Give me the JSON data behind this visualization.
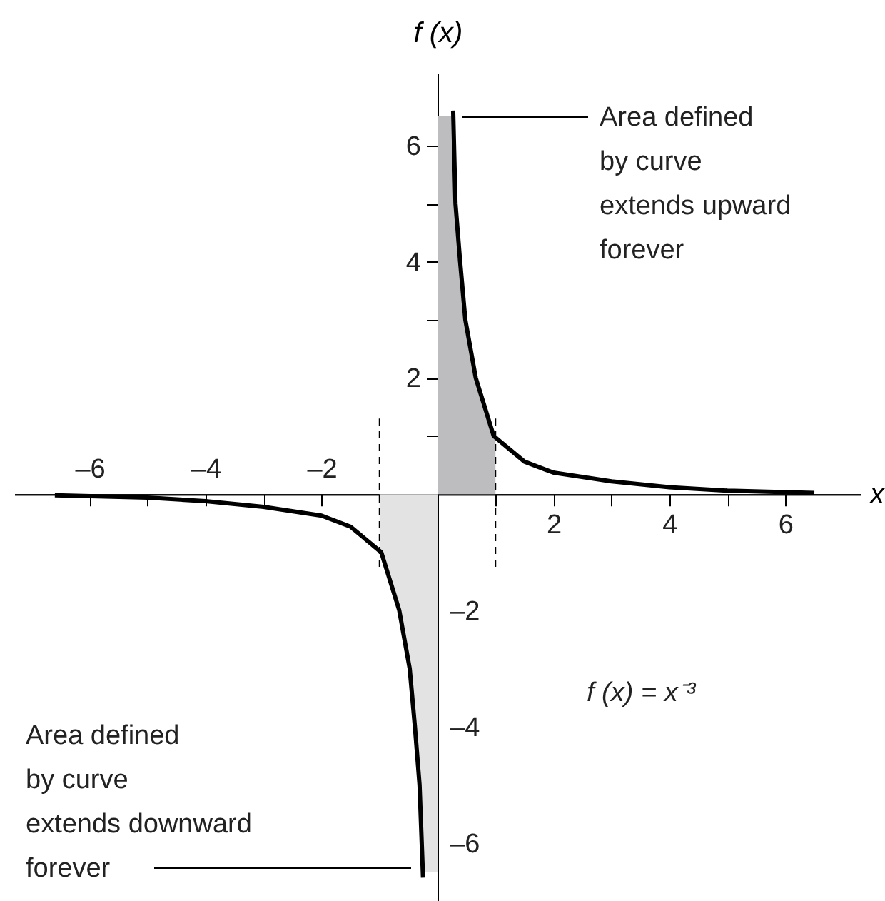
{
  "chart_data": {
    "type": "line",
    "xlabel": "x",
    "ylabel": "f (x)",
    "xlim": [
      -7.3,
      7.3
    ],
    "ylim": [
      -7.0,
      7.25
    ],
    "xticks": [
      {
        "value": -6,
        "label": "–6"
      },
      {
        "value": -5,
        "label": null
      },
      {
        "value": -4,
        "label": "–4"
      },
      {
        "value": -3,
        "label": null
      },
      {
        "value": -2,
        "label": "–2"
      },
      {
        "value": -1,
        "label": null
      }
    ],
    "x2lim": [
      -7.3,
      7.3
    ],
    "x2ticks": [
      {
        "value": 1,
        "label": null
      },
      2,
      {
        "value": 3,
        "label": null
      },
      4,
      {
        "value": 5,
        "label": null
      },
      6
    ],
    "yticks": [
      {
        "value": 1,
        "label": null
      },
      2,
      {
        "value": 3,
        "label": null
      },
      4,
      {
        "value": 5,
        "label": null
      },
      6
    ],
    "y2lim": [
      -7.0,
      7.25
    ],
    "y2ticks": [
      {
        "value": -6,
        "label": "–6"
      },
      {
        "value": -5,
        "label": null
      },
      {
        "value": -4,
        "label": "–4"
      },
      {
        "value": -3,
        "label": null
      },
      {
        "value": -2,
        "label": "–2"
      },
      {
        "value": -1,
        "label": null
      }
    ],
    "grid": false,
    "series": [
      {
        "type": "area",
        "color": "#bdbdbf",
        "x": [
          0,
          0.27,
          0.31,
          0.39,
          0.48,
          0.66,
          0.97,
          1.0
        ],
        "values": [
          6.5,
          6.5,
          5,
          4,
          3,
          2,
          1,
          0.95
        ]
      },
      {
        "type": "area",
        "color": "#e3e3e3",
        "x": [
          -1.0,
          -0.97,
          -0.66,
          -0.48,
          -0.39,
          -0.31,
          -0.25,
          0
        ],
        "values": [
          -0.95,
          -1,
          -2,
          -3,
          -4,
          -5,
          -6.5,
          -6.5
        ]
      },
      {
        "color": "#000000",
        "x": [
          0.27,
          0.31,
          0.39,
          0.48,
          0.66,
          0.97,
          1.5,
          2,
          3,
          4,
          5,
          6.5
        ],
        "values": [
          6.6,
          5,
          4,
          3,
          2,
          1,
          0.56,
          0.37,
          0.22,
          0.12,
          0.06,
          0.02
        ]
      },
      {
        "color": "#000000",
        "x": [
          -6.6,
          -5,
          -4,
          -3,
          -2,
          -1.5,
          -0.97,
          -0.66,
          -0.48,
          -0.39,
          -0.31,
          -0.25
        ],
        "values": [
          -0.02,
          -0.06,
          -0.12,
          -0.22,
          -0.37,
          -0.56,
          -1,
          -2,
          -3,
          -4,
          -5,
          -6.6
        ]
      },
      {
        "color": "#000000",
        "line_style": "dashed",
        "x": [
          -1,
          -1
        ],
        "values": [
          -1.25,
          1.3
        ]
      },
      {
        "color": "#000000",
        "line_style": "dashed",
        "x": [
          1,
          1
        ],
        "values": [
          -1.25,
          1.3
        ]
      }
    ],
    "annotations": [
      "Area defined\nby curve\nextends upward\nforever",
      "Area defined\nby curve\nextends downward\nforever",
      "f (x) = x⁻³"
    ]
  }
}
